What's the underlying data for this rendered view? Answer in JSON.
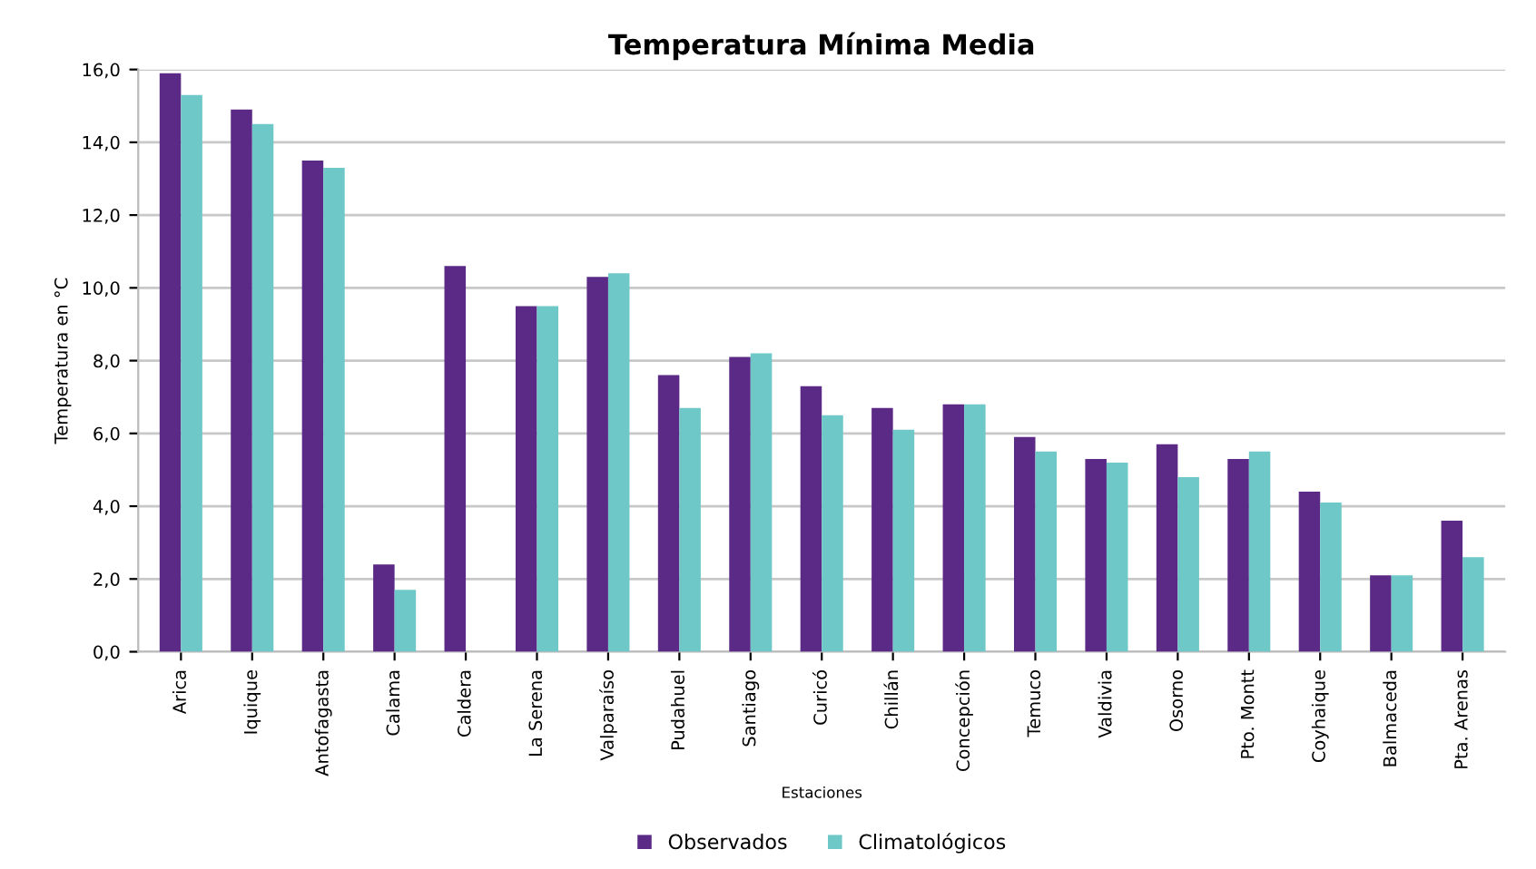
{
  "chart_data": {
    "type": "bar",
    "title": "Temperatura Mínima Media",
    "xlabel": "Estaciones",
    "ylabel": "Temperatura en °C",
    "categories": [
      "Arica",
      "Iquique",
      "Antofagasta",
      "Calama",
      "Caldera",
      "La Serena",
      "Valparaíso",
      "Pudahuel",
      "Santiago",
      "Curicó",
      "Chillán",
      "Concepción",
      "Temuco",
      "Valdivia",
      "Osorno",
      "Pto. Montt",
      "Coyhaique",
      "Balmaceda",
      "Pta. Arenas"
    ],
    "series": [
      {
        "name": "Observados",
        "color": "#5b2a86",
        "values": [
          15.9,
          14.9,
          13.5,
          2.4,
          10.6,
          9.5,
          10.3,
          7.6,
          8.1,
          7.3,
          6.7,
          6.8,
          5.9,
          5.3,
          5.7,
          5.3,
          4.4,
          2.1,
          3.6
        ]
      },
      {
        "name": "Climatológicos",
        "color": "#6fc8c8",
        "values": [
          15.3,
          14.5,
          13.3,
          1.7,
          null,
          9.5,
          10.4,
          6.7,
          8.2,
          6.5,
          6.1,
          6.8,
          5.5,
          5.2,
          4.8,
          5.5,
          4.1,
          2.1,
          2.6
        ]
      }
    ],
    "ylim": [
      0,
      16
    ],
    "yticks": [
      {
        "value": 0,
        "label": "0,0"
      },
      {
        "value": 2,
        "label": "2,0"
      },
      {
        "value": 4,
        "label": "4,0"
      },
      {
        "value": 6,
        "label": "6,0"
      },
      {
        "value": 8,
        "label": "8,0"
      },
      {
        "value": 10,
        "label": "10,0"
      },
      {
        "value": 12,
        "label": "12,0"
      },
      {
        "value": 14,
        "label": "14,0"
      },
      {
        "value": 16,
        "label": "16,0"
      }
    ],
    "grid": "y",
    "legend": "bottom"
  }
}
